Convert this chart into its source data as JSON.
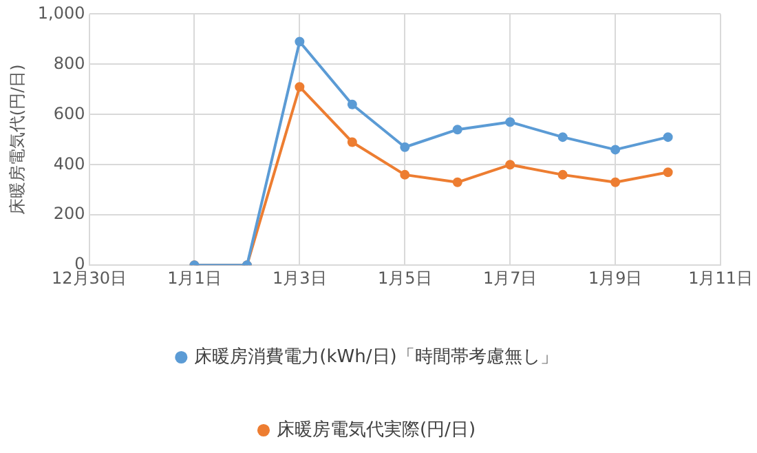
{
  "chart_data": {
    "type": "line",
    "ylabel": "床暖房電気代(円/日)",
    "categories": [
      "12月30日",
      null,
      "1月1日",
      null,
      "1月3日",
      null,
      "1月5日",
      null,
      "1月7日",
      null,
      "1月9日",
      null,
      "1月11日"
    ],
    "series": [
      {
        "name": "床暖房消費電力(kWh/日)「時間帯考慮無し」",
        "color": "#5b9bd5",
        "values": [
          null,
          null,
          0,
          0,
          890,
          640,
          470,
          540,
          570,
          510,
          460,
          510,
          null
        ]
      },
      {
        "name": "床暖房電気代実際(円/日)",
        "color": "#ed7d31",
        "values": [
          null,
          null,
          0,
          0,
          710,
          490,
          360,
          330,
          400,
          360,
          330,
          370,
          null
        ]
      }
    ],
    "ylim": [
      0,
      1000
    ],
    "yticks": [
      0,
      200,
      400,
      600,
      800,
      {
        "value": 1000,
        "label": "1,000"
      }
    ],
    "grid": true,
    "legend": "bottom",
    "marker": "circle",
    "line_style": "solid"
  }
}
